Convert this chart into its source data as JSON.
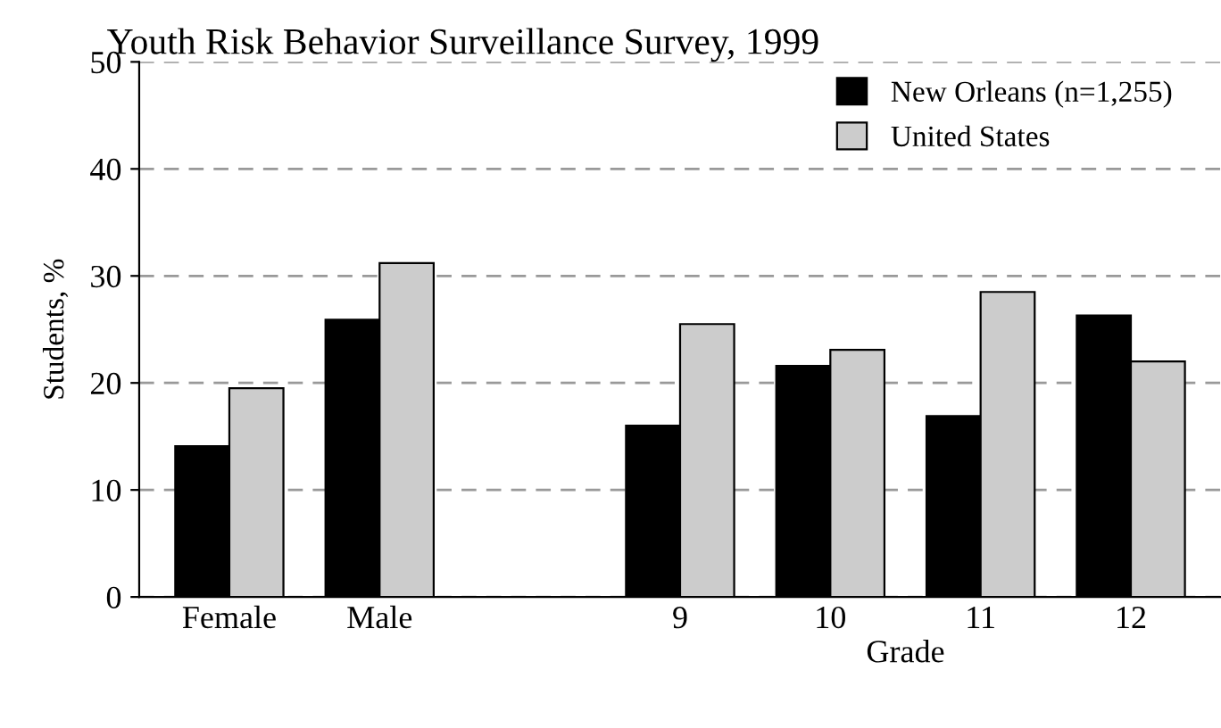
{
  "chart_data": {
    "type": "bar",
    "title": "Youth Risk Behavior Surveillance Survey, 1999",
    "xlabel": "Grade",
    "ylabel": "Students, %",
    "categories": [
      "Female",
      "Male",
      null,
      "9",
      "10",
      "11",
      "12"
    ],
    "series": [
      {
        "name": "New Orleans (n=1,255)",
        "color": "#000000",
        "values": [
          14.1,
          25.9,
          null,
          16.0,
          21.6,
          16.9,
          26.3
        ]
      },
      {
        "name": "United States",
        "color": "#cccccc",
        "values": [
          19.5,
          31.2,
          null,
          25.5,
          23.1,
          28.5,
          22.0
        ]
      }
    ],
    "ylim": [
      0,
      50
    ],
    "yticks": [
      0,
      10,
      20,
      30,
      40,
      50
    ],
    "grid": "y",
    "legend": "top right"
  }
}
